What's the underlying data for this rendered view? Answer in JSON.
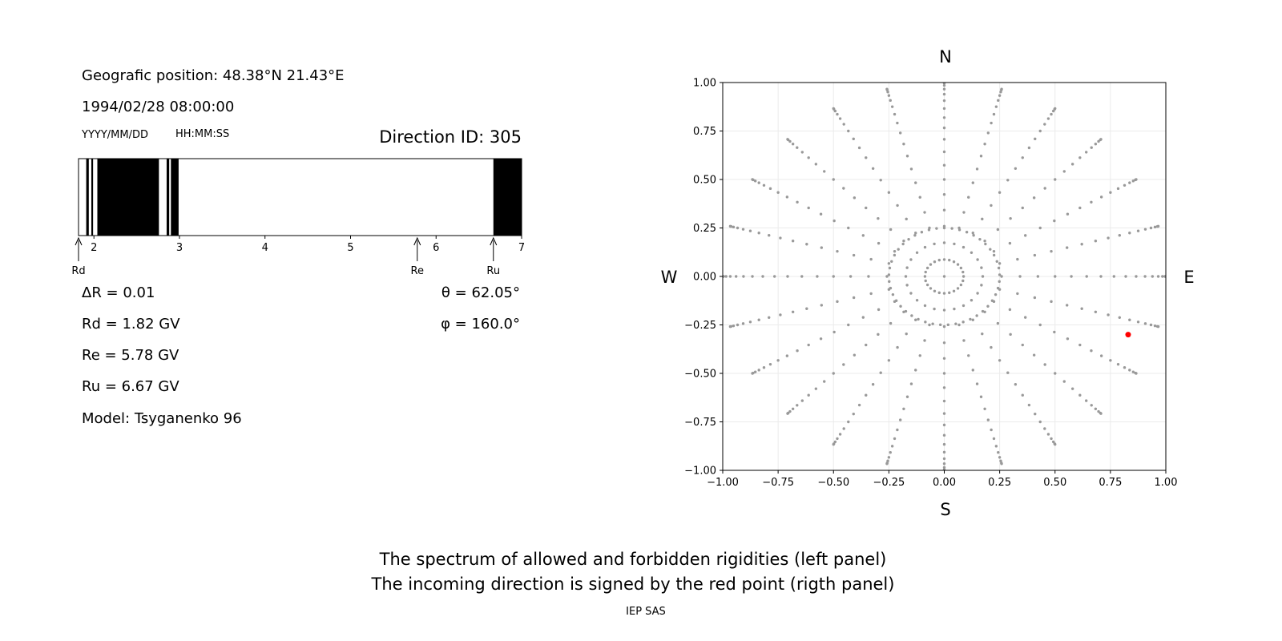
{
  "left_panel": {
    "position_line": "Geografic position: 48.38°N 21.43°E",
    "datetime_line": "1994/02/28 08:00:00",
    "date_format": "YYYY/MM/DD",
    "time_format": "HH:MM:SS",
    "direction_label": "Direction ID: 305",
    "delta_r": "ΔR = 0.01",
    "rd": "Rd = 1.82 GV",
    "re": "Re = 5.78 GV",
    "ru": "Ru = 6.67 GV",
    "model": "Model: Tsyganenko 96",
    "theta": "θ = 62.05°",
    "phi": "φ = 160.0°"
  },
  "captions": {
    "line1": "The spectrum of allowed and forbidden rigidities (left panel)",
    "line2": "The incoming direction is signed by the red point (rigth panel)",
    "footer": "IEP SAS"
  },
  "chart_data": [
    {
      "type": "bar",
      "kind": "rigidity-spectrum",
      "x_range": [
        1.82,
        7.0
      ],
      "x_ticks": [
        "2",
        "3",
        "4",
        "5",
        "6",
        "7"
      ],
      "forbidden_intervals": [
        [
          1.91,
          1.94
        ],
        [
          1.97,
          1.99
        ],
        [
          2.04,
          2.76
        ],
        [
          2.85,
          2.88
        ],
        [
          2.9,
          2.99
        ],
        [
          6.67,
          7.0
        ]
      ],
      "markers": [
        {
          "label": "Rd",
          "value": 1.82
        },
        {
          "label": "Re",
          "value": 5.78
        },
        {
          "label": "Ru",
          "value": 6.67
        }
      ],
      "colors": {
        "forbidden": "#000000",
        "allowed": "#ffffff"
      }
    },
    {
      "type": "scatter",
      "kind": "direction-map",
      "xlim": [
        -1.0,
        1.0
      ],
      "ylim": [
        -1.0,
        1.0
      ],
      "x_ticks": [
        "−1.00",
        "−0.75",
        "−0.50",
        "−0.25",
        "0.00",
        "0.25",
        "0.50",
        "0.75",
        "1.00"
      ],
      "y_ticks": [
        "1.00",
        "0.75",
        "0.50",
        "0.25",
        "0.00",
        "−0.25",
        "−0.50",
        "−0.75",
        "−1.00"
      ],
      "compass": {
        "north": "N",
        "south": "S",
        "west": "W",
        "east": "E"
      },
      "grid": true,
      "grid_azimuths_deg": [
        0,
        15,
        30,
        45,
        60,
        75,
        90,
        105,
        120,
        135,
        150,
        165,
        180,
        195,
        210,
        225,
        240,
        255,
        270,
        285,
        300,
        315,
        330,
        345
      ],
      "grid_zenith_step_deg": 5,
      "grid_zenith_max_deg": 90,
      "highlight": {
        "x": 0.83,
        "y": -0.3,
        "color": "#ff0000"
      },
      "colors": {
        "points": "#999999",
        "highlight": "#ff0000"
      }
    }
  ]
}
